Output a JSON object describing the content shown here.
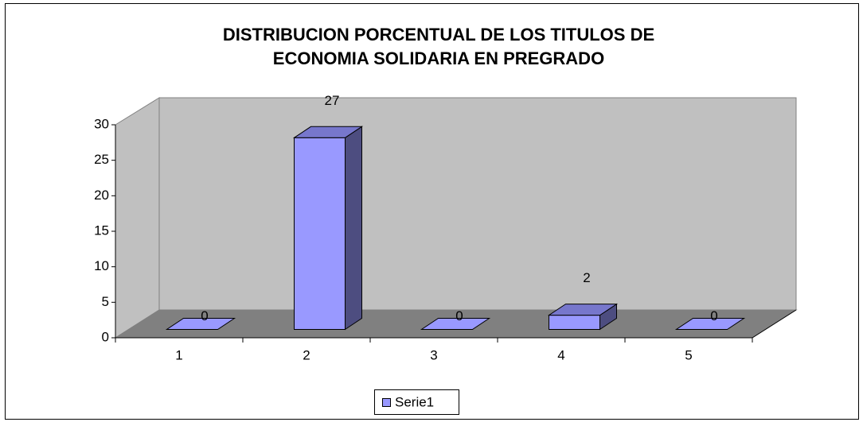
{
  "chart_data": {
    "type": "bar3d",
    "title": [
      "DISTRIBUCION PORCENTUAL DE LOS TITULOS DE",
      "ECONOMIA SOLIDARIA EN PREGRADO"
    ],
    "categories": [
      "1",
      "2",
      "3",
      "4",
      "5"
    ],
    "series": [
      {
        "name": "Serie1",
        "color": "#9999ff",
        "values": [
          0,
          27,
          0,
          2,
          0
        ]
      }
    ],
    "ylim": [
      0,
      30
    ],
    "yticks": [
      0,
      5,
      10,
      15,
      20,
      25,
      30
    ],
    "legend": "bottom"
  }
}
